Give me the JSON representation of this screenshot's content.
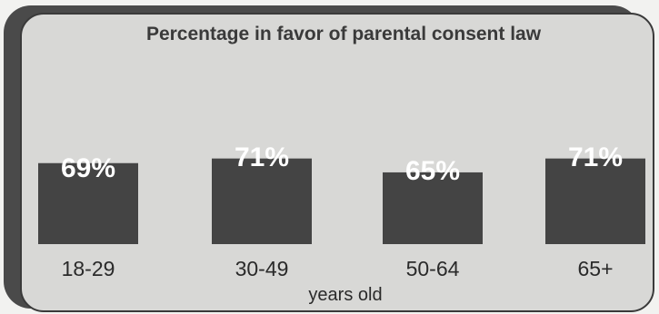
{
  "chart_data": {
    "type": "bar",
    "title": "Percentage in favor of parental consent law",
    "categories": [
      "18-29",
      "30-49",
      "50-64",
      "65+"
    ],
    "values": [
      69,
      71,
      65,
      71
    ],
    "data_labels": [
      "69%",
      "71%",
      "65%",
      "71%"
    ],
    "xlabel": "years old",
    "ylabel": "",
    "ylim": [
      0,
      100
    ],
    "grid": false,
    "bar_color": "#444444",
    "label_color": "#ffffff"
  }
}
